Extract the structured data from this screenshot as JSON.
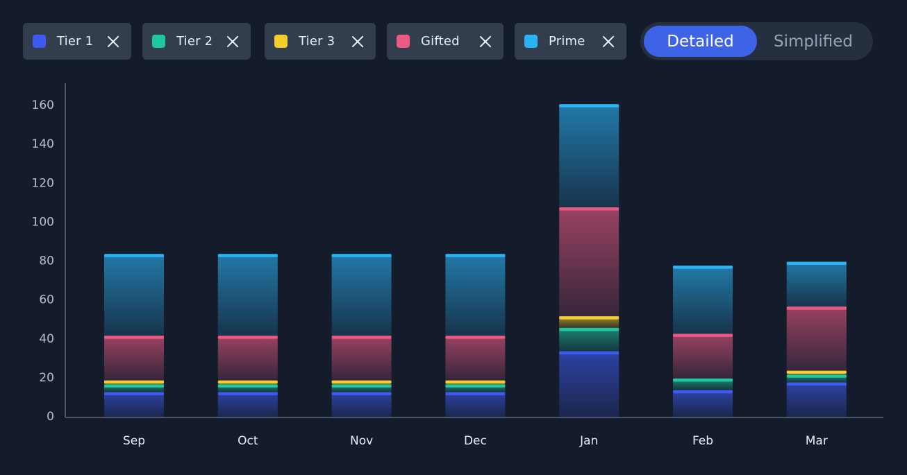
{
  "legend": {
    "chips": [
      {
        "label": "Tier 1",
        "color": "#3d5af1"
      },
      {
        "label": "Tier 2",
        "color": "#1fc7a0"
      },
      {
        "label": "Tier 3",
        "color": "#f5cd2e"
      },
      {
        "label": "Gifted",
        "color": "#ec5a84"
      },
      {
        "label": "Prime",
        "color": "#2ab3f5"
      }
    ]
  },
  "view_toggle": {
    "selected": "Detailed",
    "options": [
      "Detailed",
      "Simplified"
    ]
  },
  "chart_data": {
    "type": "bar",
    "stacked": true,
    "categories": [
      "Sep",
      "Oct",
      "Nov",
      "Dec",
      "Jan",
      "Feb",
      "Mar"
    ],
    "ylim": [
      0,
      170
    ],
    "yticks": [
      0,
      20,
      40,
      60,
      80,
      100,
      120,
      140,
      160
    ],
    "series": [
      {
        "name": "Tier 1",
        "color": "#3d5af1",
        "values": [
          13,
          13,
          13,
          13,
          34,
          14,
          18
        ]
      },
      {
        "name": "Tier 2",
        "color": "#1fc7a0",
        "values": [
          4,
          4,
          4,
          4,
          12,
          6,
          4
        ]
      },
      {
        "name": "Tier 3",
        "color": "#f5cd2e",
        "values": [
          2,
          2,
          2,
          2,
          6,
          0,
          2
        ]
      },
      {
        "name": "Gifted",
        "color": "#ec5a84",
        "values": [
          23,
          23,
          23,
          23,
          56,
          23,
          33
        ]
      },
      {
        "name": "Prime",
        "color": "#2ab3f5",
        "values": [
          42,
          42,
          42,
          42,
          53,
          35,
          23
        ]
      }
    ],
    "grid": false
  }
}
